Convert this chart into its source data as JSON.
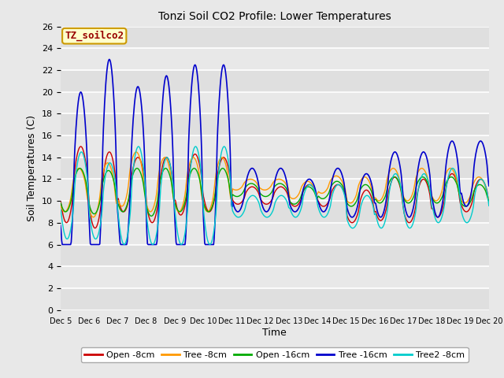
{
  "title": "Tonzi Soil CO2 Profile: Lower Temperatures",
  "xlabel": "Time",
  "ylabel": "Soil Temperatures (C)",
  "ylim": [
    0,
    26
  ],
  "yticks": [
    0,
    2,
    4,
    6,
    8,
    10,
    12,
    14,
    16,
    18,
    20,
    22,
    24,
    26
  ],
  "bg_color": "#e8e8e8",
  "legend_label": "TZ_soilco2",
  "legend_box_facecolor": "#ffffcc",
  "legend_box_edgecolor": "#cc9900",
  "series": {
    "Open_8cm": {
      "color": "#cc0000",
      "label": "Open -8cm",
      "lw": 1.0
    },
    "Tree_8cm": {
      "color": "#ff9900",
      "label": "Tree -8cm",
      "lw": 1.0
    },
    "Open_16cm": {
      "color": "#00aa00",
      "label": "Open -16cm",
      "lw": 1.0
    },
    "Tree_16cm": {
      "color": "#0000cc",
      "label": "Tree -16cm",
      "lw": 1.2
    },
    "Tree2_8cm": {
      "color": "#00cccc",
      "label": "Tree2 -8cm",
      "lw": 1.0
    }
  }
}
